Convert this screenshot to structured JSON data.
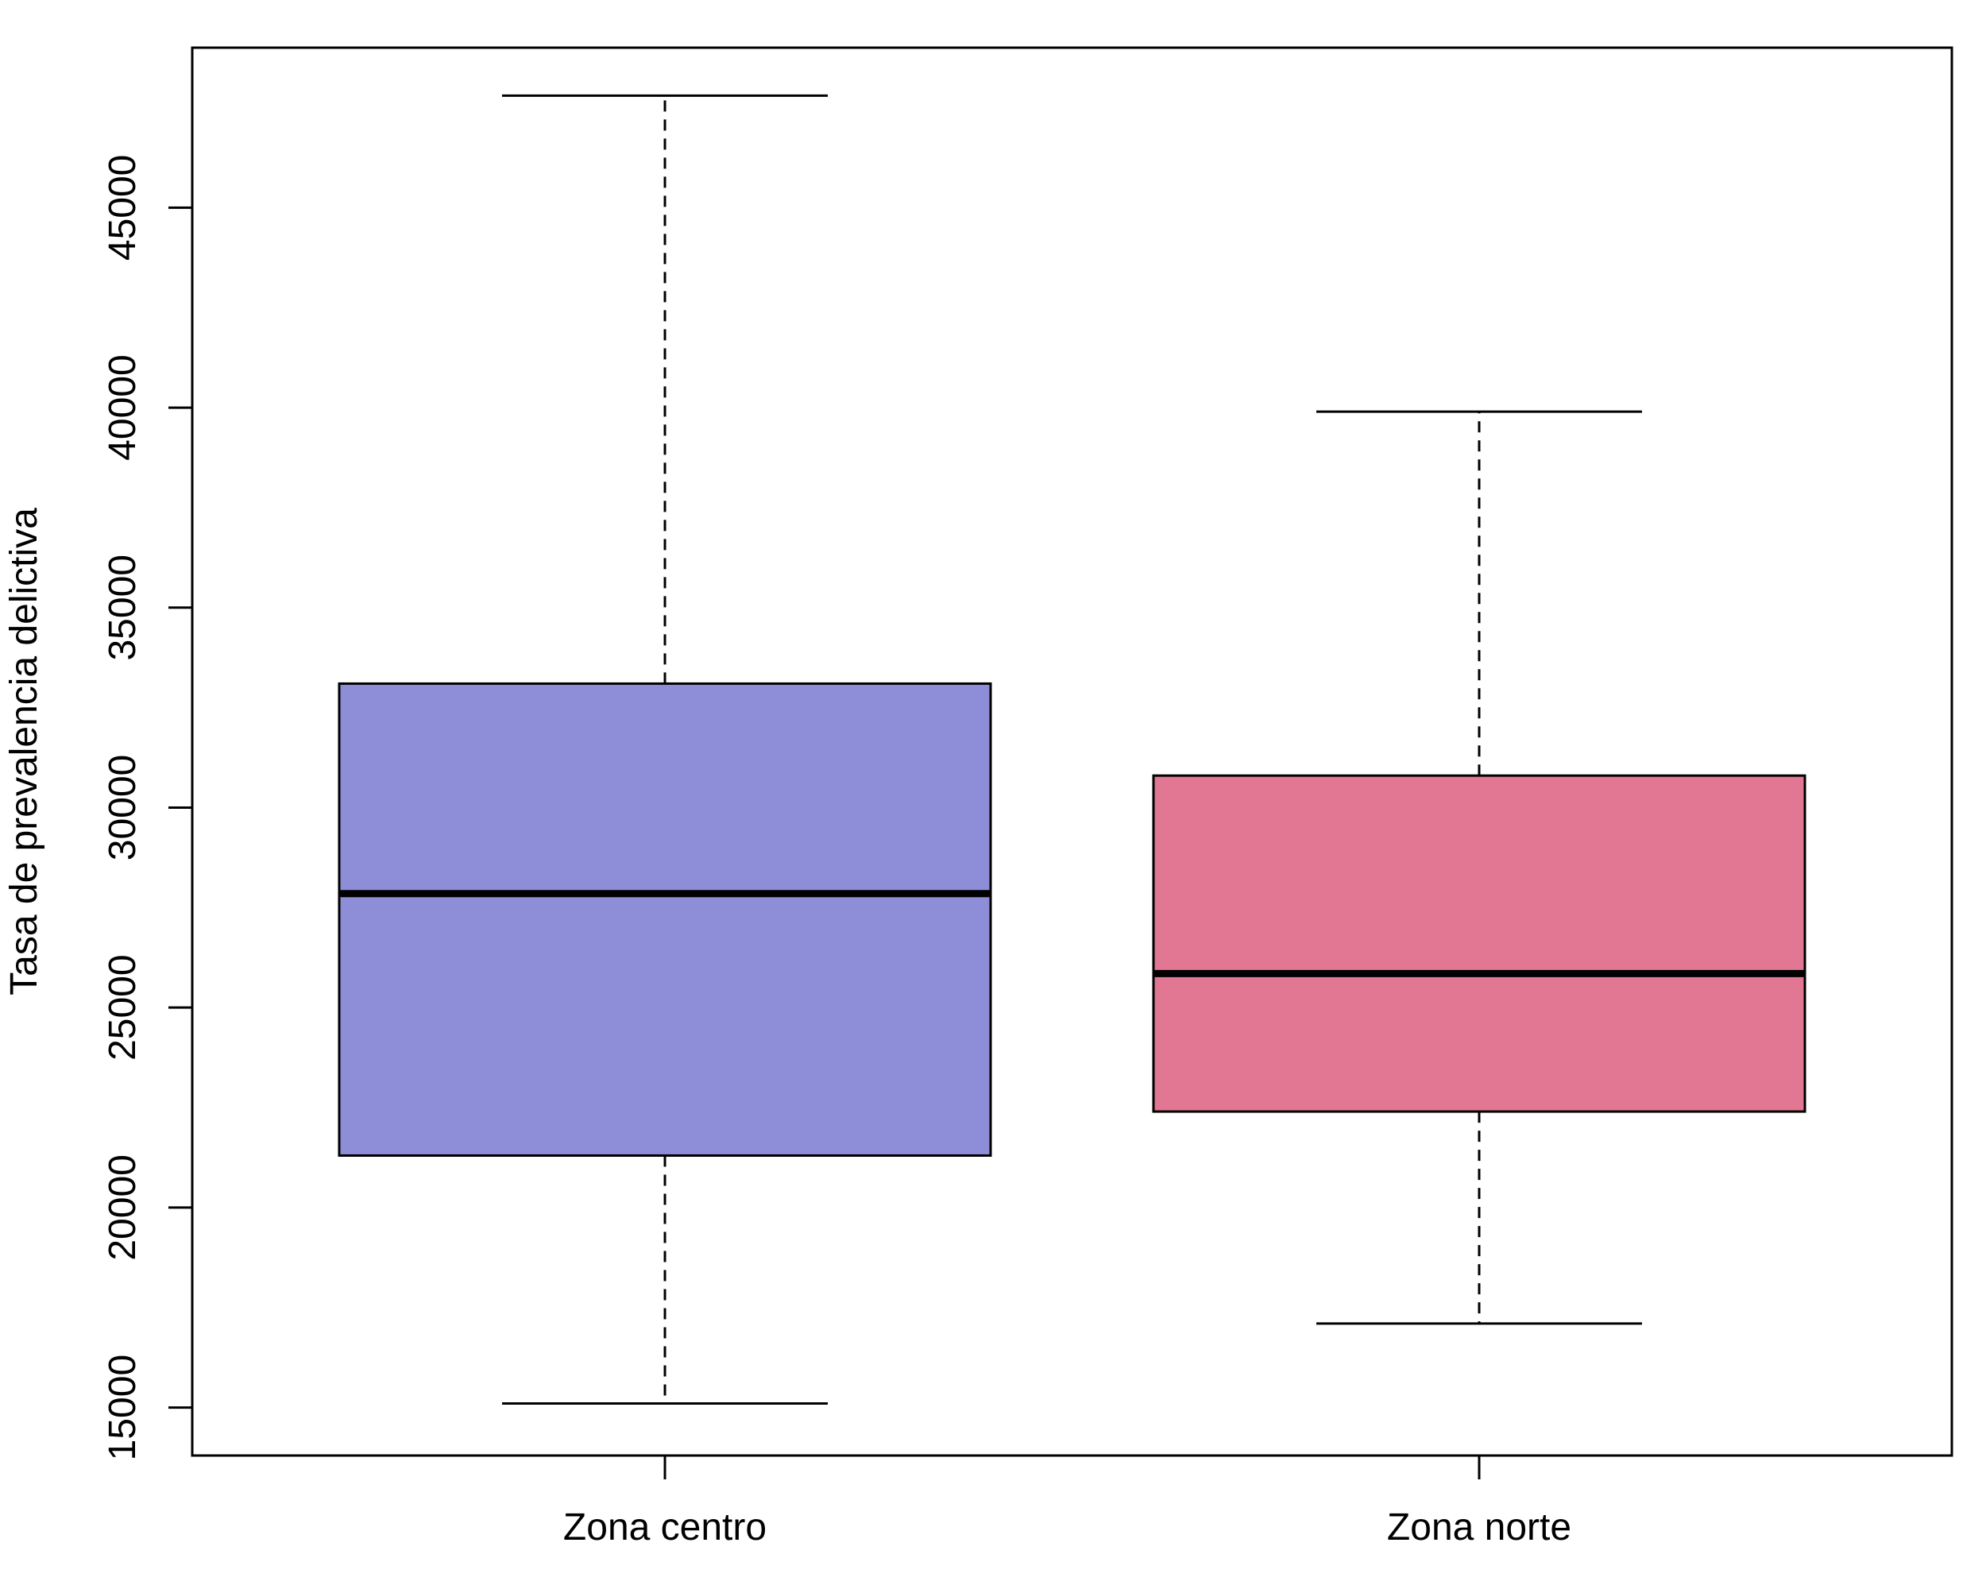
{
  "chart_data": {
    "type": "boxplot",
    "title": "",
    "xlabel": "",
    "ylabel": "Tasa de prevalencia delictiva",
    "ylim": [
      13800,
      49000
    ],
    "yticks": [
      15000,
      20000,
      25000,
      30000,
      35000,
      40000,
      45000
    ],
    "grid": false,
    "categories": [
      "Zona centro",
      "Zona norte"
    ],
    "boxes": [
      {
        "category": "Zona centro",
        "whisker_low": 15100,
        "q1": 21300,
        "median": 27850,
        "q3": 33100,
        "whisker_high": 47800,
        "color": "#8E8DD8"
      },
      {
        "category": "Zona norte",
        "whisker_low": 17100,
        "q1": 22400,
        "median": 25850,
        "q3": 30800,
        "whisker_high": 39900,
        "color": "#E17792"
      }
    ]
  }
}
